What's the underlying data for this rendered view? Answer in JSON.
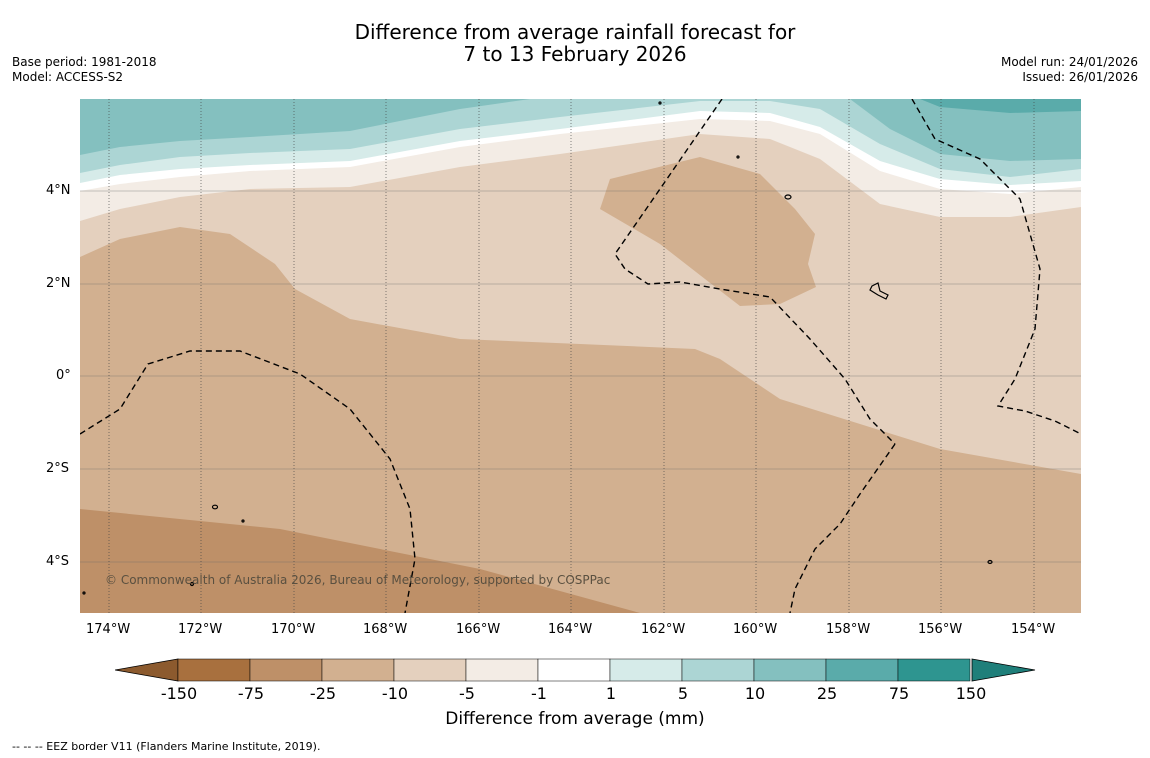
{
  "title": {
    "line1": "Difference from average rainfall forecast for",
    "line2": "7 to 13 February 2026"
  },
  "meta_left": {
    "base_period": "Base period: 1981-2018",
    "model": "Model: ACCESS-S2"
  },
  "meta_right": {
    "model_run": "Model run: 24/01/2026",
    "issued": "Issued: 26/01/2026"
  },
  "map": {
    "lat_labels": [
      "4°N",
      "2°N",
      "0°",
      "2°S",
      "4°S"
    ],
    "lon_labels": [
      "174°W",
      "172°W",
      "170°W",
      "168°W",
      "166°W",
      "164°W",
      "162°W",
      "160°W",
      "158°W",
      "156°W",
      "154°W"
    ],
    "copyright": "© Commonwealth of Australia 2026, Bureau of Meteorology, supported by COSPPac"
  },
  "colorbar": {
    "tick_labels": [
      "-150",
      "-75",
      "-25",
      "-10",
      "-5",
      "-1",
      "1",
      "5",
      "10",
      "25",
      "75",
      "150"
    ],
    "colors": [
      "#a8703e",
      "#be9068",
      "#d2b090",
      "#e4d0be",
      "#f3ece5",
      "#ffffff",
      "#d6ebe9",
      "#acd5d4",
      "#84c0bf",
      "#5aabaa",
      "#2e9590"
    ],
    "extend_low_color": "#8c5a2e",
    "extend_high_color": "#1f7f7a",
    "title": "Difference from average (mm)"
  },
  "footer": "--  --  -- EEZ border V11 (Flanders Marine Institute, 2019)."
}
